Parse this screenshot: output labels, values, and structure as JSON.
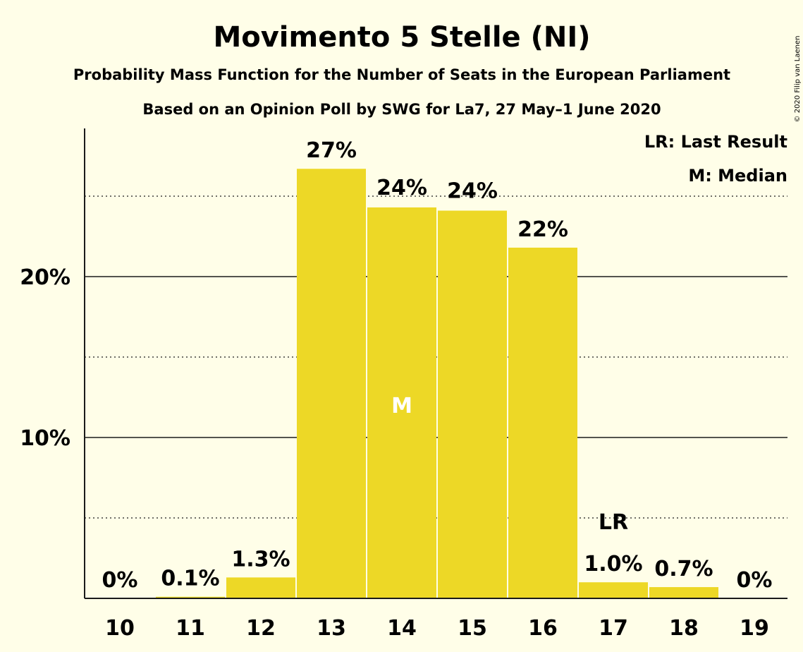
{
  "chart_data": {
    "type": "bar",
    "title": "Movimento 5 Stelle (NI)",
    "subtitle": "Probability Mass Function for the Number of Seats in the European Parliament",
    "subtitle2": "Based on an Opinion Poll by SWG for La7, 27 May–1 June 2020",
    "categories": [
      "10",
      "11",
      "12",
      "13",
      "14",
      "15",
      "16",
      "17",
      "18",
      "19"
    ],
    "values": [
      0,
      0.1,
      1.3,
      26.7,
      24.3,
      24.1,
      21.8,
      1.0,
      0.7,
      0
    ],
    "value_labels": [
      "0%",
      "0.1%",
      "1.3%",
      "27%",
      "24%",
      "24%",
      "22%",
      "1.0%",
      "0.7%",
      "0%"
    ],
    "ylim": [
      0,
      29
    ],
    "yticks": [
      10,
      20
    ],
    "ytick_labels": [
      "10%",
      "20%"
    ],
    "grid_major": [
      10,
      20
    ],
    "grid_minor": [
      5,
      15,
      25
    ],
    "median_category": "14",
    "median_label": "M",
    "last_result_category": "17",
    "last_result_label": "LR",
    "legend": [
      "LR: Last Result",
      "M: Median"
    ],
    "legend_position": "top-right",
    "bar_color": "#EDD826",
    "copyright": "© 2020 Filip van Laenen"
  }
}
